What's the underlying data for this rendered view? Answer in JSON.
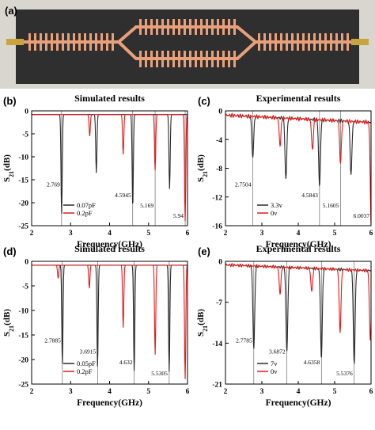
{
  "figure": {
    "photo_label": "(a)",
    "colors": {
      "black_curve": "#2a2a2a",
      "red_curve": "#e01b1b",
      "photo_bg": "#3c3c3c",
      "board": "#2f2f2f",
      "copper": "#e8a07a"
    }
  },
  "chart_data": [
    {
      "id": "b",
      "label": "(b)",
      "type": "line",
      "title": "Simulated results",
      "xlabel": "Frequency(GHz)",
      "ylabel": "S21(dB)",
      "xlim": [
        2,
        6
      ],
      "ylim": [
        -25,
        0
      ],
      "xticks": [
        2,
        3,
        4,
        5,
        6
      ],
      "yticks": [
        0,
        -5,
        -10,
        -15,
        -20,
        -25
      ],
      "legend_position": "bottom-center",
      "vlines": [
        2.769,
        4.5945,
        5.169,
        5.94
      ],
      "annotations": [
        "2.769",
        "4.5945",
        "5.169",
        "5.94"
      ],
      "series": [
        {
          "name": "0.07pF",
          "color": "#2a2a2a",
          "dips": [
            [
              2.769,
              -22.5
            ],
            [
              3.66,
              -13.5
            ],
            [
              4.5945,
              -21.0
            ],
            [
              5.54,
              -17.0
            ]
          ]
        },
        {
          "name": "0.2pF",
          "color": "#e01b1b",
          "dips": [
            [
              3.49,
              -5.5
            ],
            [
              4.35,
              -9.5
            ],
            [
              5.169,
              -13.0
            ],
            [
              5.94,
              -24.0
            ]
          ]
        }
      ]
    },
    {
      "id": "c",
      "label": "(c)",
      "type": "line",
      "title": "Experimental results",
      "xlabel": "Frequency(GHz)",
      "ylabel": "S21(dB)",
      "xlim": [
        2,
        6
      ],
      "ylim": [
        -16,
        0
      ],
      "xticks": [
        2,
        3,
        4,
        5,
        6
      ],
      "yticks": [
        0,
        -4,
        -8,
        -12,
        -16
      ],
      "legend_position": "bottom-center",
      "vlines": [
        2.7504,
        4.5843,
        5.1605,
        6.0037
      ],
      "annotations": [
        "2.7504",
        "4.5843",
        "5.1605",
        "6.0037"
      ],
      "series": [
        {
          "name": "3.3v",
          "color": "#2a2a2a",
          "dips": [
            [
              2.7504,
              -6.5
            ],
            [
              3.66,
              -9.5
            ],
            [
              4.5843,
              -10.5
            ],
            [
              5.45,
              -8.8
            ]
          ]
        },
        {
          "name": "0v",
          "color": "#e01b1b",
          "dips": [
            [
              3.5,
              -4.8
            ],
            [
              4.39,
              -5.4
            ],
            [
              5.1605,
              -7.2
            ],
            [
              6.0037,
              -16.0
            ]
          ]
        }
      ]
    },
    {
      "id": "d",
      "label": "(d)",
      "type": "line",
      "title": "Simulated results",
      "xlabel": "Frequency(GHz)",
      "ylabel": "S21(dB)",
      "xlim": [
        2,
        6
      ],
      "ylim": [
        -25,
        0
      ],
      "xticks": [
        2,
        3,
        4,
        5,
        6
      ],
      "yticks": [
        0,
        -5,
        -10,
        -15,
        -20,
        -25
      ],
      "legend_position": "bottom-center",
      "vlines": [
        2.7885,
        3.6915,
        4.632,
        5.5305
      ],
      "annotations": [
        "2.7885",
        "3.6915",
        "4.632",
        "5.5305"
      ],
      "series": [
        {
          "name": "0.05pF",
          "color": "#2a2a2a",
          "dips": [
            [
              2.7885,
              -21.0
            ],
            [
              3.6915,
              -21.5
            ],
            [
              4.632,
              -22.5
            ],
            [
              5.5305,
              -22.5
            ]
          ]
        },
        {
          "name": "0.2pF",
          "color": "#e01b1b",
          "dips": [
            [
              2.68,
              -3.5
            ],
            [
              3.48,
              -5.5
            ],
            [
              4.35,
              -13.5
            ],
            [
              5.17,
              -19.0
            ],
            [
              5.94,
              -24.0
            ]
          ]
        }
      ]
    },
    {
      "id": "e",
      "label": "(e)",
      "type": "line",
      "title": "Experimental results",
      "xlabel": "Frequency(GHz)",
      "ylabel": "S21(dB)",
      "xlim": [
        2,
        6
      ],
      "ylim": [
        -21,
        0
      ],
      "xticks": [
        2,
        3,
        4,
        5,
        6
      ],
      "yticks": [
        0,
        -7,
        -14,
        -21
      ],
      "legend_position": "bottom-center",
      "vlines": [
        2.7785,
        3.6872,
        4.6358,
        5.5376
      ],
      "annotations": [
        "2.7785",
        "3.6872",
        "4.6358",
        "5.5376"
      ],
      "series": [
        {
          "name": "7v",
          "color": "#2a2a2a",
          "dips": [
            [
              2.7785,
              -15.0
            ],
            [
              3.6872,
              -15.5
            ],
            [
              4.6358,
              -16.5
            ],
            [
              5.5376,
              -17.5
            ]
          ]
        },
        {
          "name": "0v",
          "color": "#e01b1b",
          "dips": [
            [
              3.5,
              -5.5
            ],
            [
              4.37,
              -5.2
            ],
            [
              5.15,
              -12.0
            ],
            [
              5.98,
              -13.5
            ]
          ]
        }
      ]
    }
  ]
}
